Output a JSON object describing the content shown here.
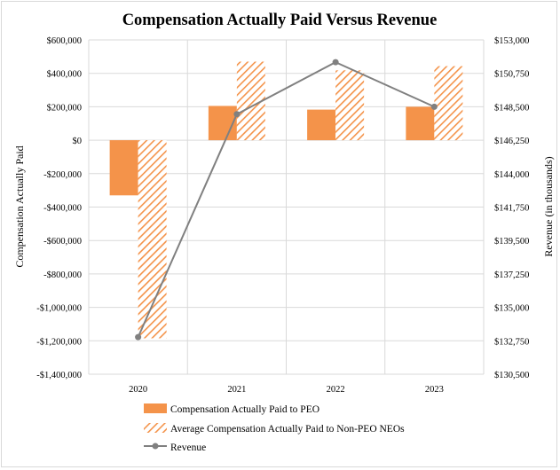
{
  "chart_data": {
    "type": "bar",
    "title": "Compensation Actually Paid Versus Revenue",
    "categories": [
      "2020",
      "2021",
      "2022",
      "2023"
    ],
    "ylabel": "Compensation Actually Paid",
    "y2label": "Revenue (in thousands)",
    "ylim": [
      -1400000,
      600000
    ],
    "y2lim": [
      130500,
      153000
    ],
    "yticks": [
      600000,
      400000,
      200000,
      0,
      -200000,
      -400000,
      -600000,
      -800000,
      -1000000,
      -1200000,
      -1400000
    ],
    "ytick_labels": [
      "$600,000",
      "$400,000",
      "$200,000",
      "$0",
      "-$200,000",
      "-$400,000",
      "-$600,000",
      "-$800,000",
      "-$1,000,000",
      "-$1,200,000",
      "-$1,400,000"
    ],
    "y2ticks": [
      153000,
      150750,
      148500,
      146250,
      144000,
      141750,
      139500,
      137250,
      135000,
      132750,
      130500
    ],
    "y2tick_labels": [
      "$153,000",
      "$150,750",
      "$148,500",
      "$146,250",
      "$144,000",
      "$141,750",
      "$139,500",
      "$137,250",
      "$135,000",
      "$132,750",
      "$130,500"
    ],
    "grid": true,
    "legend_position": "bottom",
    "series": [
      {
        "name": "Compensation Actually Paid to PEO",
        "type": "bar",
        "style": "solid",
        "axis": "left",
        "color": "#f4934a",
        "values": [
          -330000,
          205000,
          183000,
          200000
        ]
      },
      {
        "name": "Average Compensation Actually Paid to Non-PEO NEOs",
        "type": "bar",
        "style": "hatched",
        "axis": "left",
        "color": "#f4934a",
        "values": [
          -1185000,
          470000,
          418000,
          443000
        ]
      },
      {
        "name": "Revenue",
        "type": "line",
        "axis": "right",
        "color": "#808080",
        "values": [
          133000,
          148000,
          151500,
          148500
        ]
      }
    ]
  }
}
